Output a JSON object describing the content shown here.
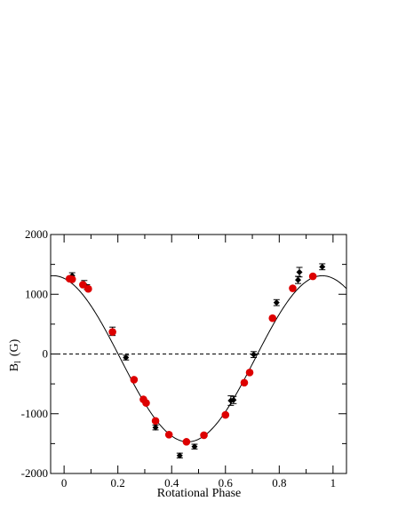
{
  "chart_data": {
    "type": "scatter",
    "xlabel": "Rotational Phase",
    "ylabel": "B",
    "ylabel_subscript": "l",
    "ylabel_unit": "(G)",
    "xlim": [
      -0.05,
      1.05
    ],
    "ylim": [
      -2000,
      2000
    ],
    "x_ticks": [
      0,
      0.2,
      0.4,
      0.6,
      0.8,
      1
    ],
    "x_tick_labels": [
      "0",
      "0.2",
      "0.4",
      "0.6",
      "0.8",
      "1"
    ],
    "y_ticks": [
      -2000,
      -1000,
      0,
      1000,
      2000
    ],
    "y_tick_labels": [
      "-2000",
      "-1000",
      "0",
      "1000",
      "2000"
    ],
    "grid": false,
    "zero_line": {
      "y": 0,
      "style": "dashed"
    },
    "fit_curve": {
      "model": "sinusoid",
      "offset": -80,
      "amplitude": 1390,
      "peak_phase": 0.96
    },
    "series": [
      {
        "marker": "diamond",
        "color": "#000000",
        "points": [
          {
            "x": 0.03,
            "y": 1310,
            "err": 50
          },
          {
            "x": 0.075,
            "y": 1170,
            "err": 60
          },
          {
            "x": 0.085,
            "y": 1120,
            "err": 40
          },
          {
            "x": 0.18,
            "y": 380,
            "err": 70
          },
          {
            "x": 0.23,
            "y": -60,
            "err": 40
          },
          {
            "x": 0.34,
            "y": -1230,
            "err": 40
          },
          {
            "x": 0.43,
            "y": -1700,
            "err": 40
          },
          {
            "x": 0.485,
            "y": -1550,
            "err": 40
          },
          {
            "x": 0.62,
            "y": -780,
            "err": 80
          },
          {
            "x": 0.63,
            "y": -770,
            "err": 60
          },
          {
            "x": 0.705,
            "y": -10,
            "err": 50
          },
          {
            "x": 0.79,
            "y": 860,
            "err": 50
          },
          {
            "x": 0.87,
            "y": 1240,
            "err": 60
          },
          {
            "x": 0.875,
            "y": 1370,
            "err": 80
          },
          {
            "x": 0.96,
            "y": 1460,
            "err": 50
          }
        ]
      },
      {
        "marker": "circle",
        "color": "#dd0000",
        "points": [
          {
            "x": 0.02,
            "y": 1260
          },
          {
            "x": 0.03,
            "y": 1250
          },
          {
            "x": 0.07,
            "y": 1160
          },
          {
            "x": 0.09,
            "y": 1090
          },
          {
            "x": 0.18,
            "y": 370
          },
          {
            "x": 0.26,
            "y": -430
          },
          {
            "x": 0.295,
            "y": -760
          },
          {
            "x": 0.305,
            "y": -820
          },
          {
            "x": 0.34,
            "y": -1120
          },
          {
            "x": 0.39,
            "y": -1350
          },
          {
            "x": 0.455,
            "y": -1470
          },
          {
            "x": 0.52,
            "y": -1360
          },
          {
            "x": 0.6,
            "y": -1020
          },
          {
            "x": 0.67,
            "y": -480
          },
          {
            "x": 0.69,
            "y": -310
          },
          {
            "x": 0.775,
            "y": 600
          },
          {
            "x": 0.85,
            "y": 1100
          },
          {
            "x": 0.925,
            "y": 1300
          }
        ]
      }
    ]
  }
}
